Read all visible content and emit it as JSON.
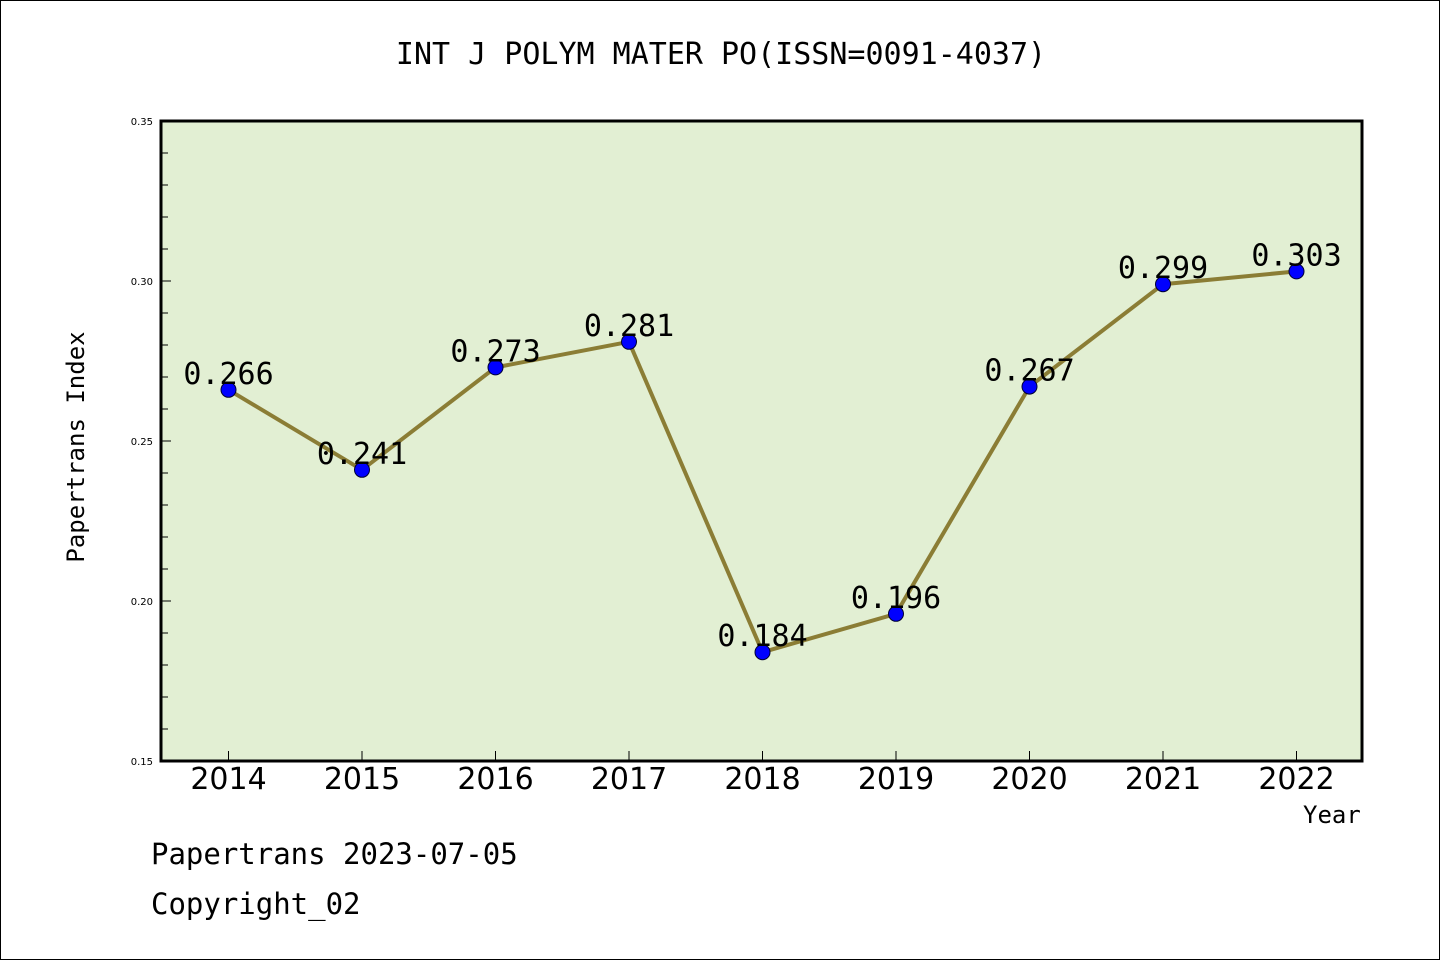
{
  "chart_data": {
    "type": "line",
    "title": "INT J POLYM MATER PO(ISSN=0091-4037)",
    "xlabel": "Year",
    "ylabel": "Papertrans Index",
    "categories": [
      "2014",
      "2015",
      "2016",
      "2017",
      "2018",
      "2019",
      "2020",
      "2021",
      "2022"
    ],
    "series": [
      {
        "values": [
          0.266,
          0.241,
          0.273,
          0.281,
          0.184,
          0.196,
          0.267,
          0.299,
          0.303
        ],
        "labels": [
          "0.266",
          "0.241",
          "0.273",
          "0.281",
          "0.184",
          "0.196",
          "0.267",
          "0.299",
          "0.303"
        ]
      }
    ],
    "ylim": [
      0.15,
      0.35
    ],
    "yticks": [
      "0.15",
      "0.20",
      "0.25",
      "0.30",
      "0.35"
    ],
    "grid": false,
    "colors": {
      "plot_background": "#e2efd3",
      "line": "#8b7d35",
      "marker": "#0000ff"
    }
  },
  "footer": {
    "date_text": "Papertrans 2023-07-05",
    "copyright_text": "Copyright_02"
  }
}
